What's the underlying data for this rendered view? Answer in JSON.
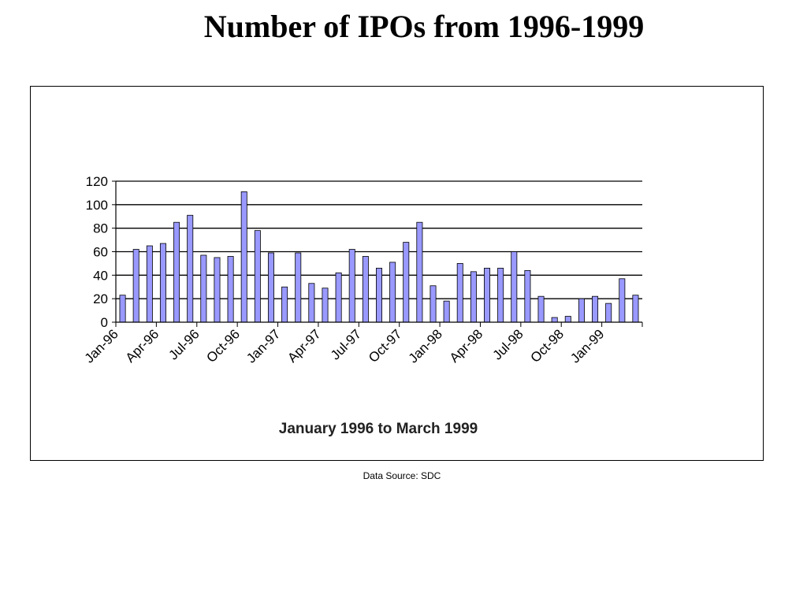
{
  "slide": {
    "title": "Number of IPOs from 1996-1999",
    "source_note": "Data Source: SDC"
  },
  "chart_data": {
    "type": "bar",
    "xlabel": "January 1996 to March 1999",
    "ylabel": "",
    "ylim": [
      0,
      120
    ],
    "yticks": [
      0,
      20,
      40,
      60,
      80,
      100,
      120
    ],
    "grid": true,
    "bar_color": "#9999ff",
    "categories": [
      "Jan-96",
      "Feb-96",
      "Mar-96",
      "Apr-96",
      "May-96",
      "Jun-96",
      "Jul-96",
      "Aug-96",
      "Sep-96",
      "Oct-96",
      "Nov-96",
      "Dec-96",
      "Jan-97",
      "Feb-97",
      "Mar-97",
      "Apr-97",
      "May-97",
      "Jun-97",
      "Jul-97",
      "Aug-97",
      "Sep-97",
      "Oct-97",
      "Nov-97",
      "Dec-97",
      "Jan-98",
      "Feb-98",
      "Mar-98",
      "Apr-98",
      "May-98",
      "Jun-98",
      "Jul-98",
      "Aug-98",
      "Sep-98",
      "Oct-98",
      "Nov-98",
      "Dec-98",
      "Jan-99",
      "Feb-99",
      "Mar-99"
    ],
    "values": [
      23,
      62,
      65,
      67,
      85,
      91,
      57,
      55,
      56,
      111,
      78,
      59,
      30,
      59,
      33,
      29,
      42,
      62,
      56,
      46,
      51,
      68,
      85,
      31,
      18,
      50,
      43,
      46,
      46,
      60,
      44,
      22,
      4,
      5,
      20,
      22,
      16,
      37,
      23
    ],
    "tick_labels": [
      "Jan-96",
      "Apr-96",
      "Jul-96",
      "Oct-96",
      "Jan-97",
      "Apr-97",
      "Jul-97",
      "Oct-97",
      "Jan-98",
      "Apr-98",
      "Jul-98",
      "Oct-98",
      "Jan-99"
    ]
  }
}
